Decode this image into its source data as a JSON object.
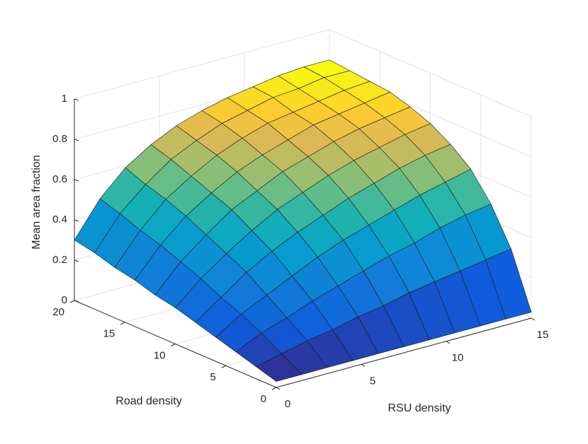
{
  "chart_data": {
    "type": "surface",
    "x_label": "RSU density",
    "y_label": "Road density",
    "z_label": "Mean area fraction",
    "x": [
      0,
      1.5,
      3,
      4.5,
      6,
      7.5,
      9,
      10.5,
      12,
      13.5,
      15
    ],
    "y": [
      0,
      2,
      4,
      6,
      8,
      10,
      12,
      14,
      16,
      18,
      20
    ],
    "z": [
      [
        0.03,
        0.03,
        0.03,
        0.03,
        0.03,
        0.03,
        0.03,
        0.03,
        0.03,
        0.03,
        0.03
      ],
      [
        0.06,
        0.09,
        0.12,
        0.14,
        0.17,
        0.19,
        0.22,
        0.24,
        0.26,
        0.28,
        0.3
      ],
      [
        0.09,
        0.15,
        0.19,
        0.24,
        0.28,
        0.32,
        0.36,
        0.39,
        0.43,
        0.46,
        0.48
      ],
      [
        0.12,
        0.2,
        0.26,
        0.32,
        0.38,
        0.43,
        0.47,
        0.51,
        0.55,
        0.58,
        0.61
      ],
      [
        0.15,
        0.24,
        0.33,
        0.4,
        0.46,
        0.51,
        0.56,
        0.6,
        0.64,
        0.67,
        0.69
      ],
      [
        0.18,
        0.29,
        0.38,
        0.46,
        0.53,
        0.58,
        0.63,
        0.67,
        0.7,
        0.73,
        0.75
      ],
      [
        0.2,
        0.33,
        0.43,
        0.52,
        0.58,
        0.64,
        0.68,
        0.72,
        0.75,
        0.77,
        0.79
      ],
      [
        0.23,
        0.37,
        0.48,
        0.56,
        0.63,
        0.68,
        0.72,
        0.76,
        0.78,
        0.8,
        0.82
      ],
      [
        0.25,
        0.4,
        0.52,
        0.6,
        0.67,
        0.72,
        0.76,
        0.78,
        0.8,
        0.82,
        0.83
      ],
      [
        0.28,
        0.44,
        0.55,
        0.64,
        0.7,
        0.75,
        0.78,
        0.81,
        0.82,
        0.84,
        0.84
      ],
      [
        0.3,
        0.47,
        0.59,
        0.67,
        0.73,
        0.77,
        0.8,
        0.82,
        0.84,
        0.85,
        0.85
      ]
    ],
    "xlim": [
      0,
      15
    ],
    "xticks": [
      0,
      5,
      10,
      15
    ],
    "ylim": [
      0,
      20
    ],
    "yticks": [
      0,
      5,
      10,
      15,
      20
    ],
    "zlim": [
      0,
      1
    ],
    "zticks": [
      0,
      0.2,
      0.4,
      0.6,
      0.8,
      1
    ],
    "grid": true,
    "colormap": "parula",
    "edge_color": "#1a1a1a"
  }
}
